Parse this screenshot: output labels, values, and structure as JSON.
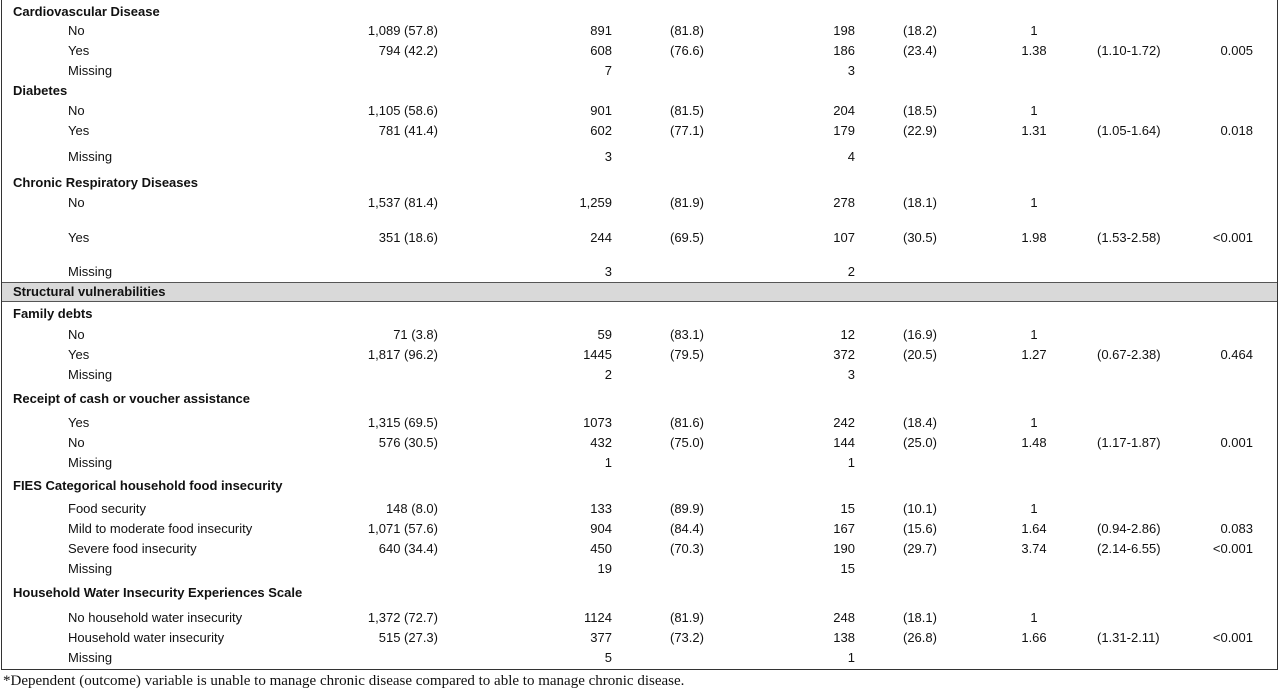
{
  "table": {
    "rows": [
      {
        "heading": "Cardiovascular Disease"
      },
      {
        "label": "No",
        "c1": "1,089 (57.8)",
        "c2": "891",
        "c3": "(81.8)",
        "c4": "198",
        "c5": "(18.2)",
        "c6": "1"
      },
      {
        "label": "Yes",
        "c1": "794 (42.2)",
        "c2": "608",
        "c3": "(76.6)",
        "c4": "186",
        "c5": "(23.4)",
        "c6": "1.38",
        "c7": "(1.10-1.72)",
        "c8": "0.005"
      },
      {
        "label": "Missing",
        "c2": "7",
        "c4": "3"
      },
      {
        "heading": "Diabetes"
      },
      {
        "label": "No",
        "c1": "1,105 (58.6)",
        "c2": "901",
        "c3": "(81.5)",
        "c4": "204",
        "c5": "(18.5)",
        "c6": "1"
      },
      {
        "label": "Yes",
        "c1": "781 (41.4)",
        "c2": "602",
        "c3": "(77.1)",
        "c4": "179",
        "c5": "(22.9)",
        "c6": "1.31",
        "c7": "(1.05-1.64)",
        "c8": "0.018"
      },
      {
        "label": "Missing",
        "c2": "3",
        "c4": "4"
      },
      {
        "heading": "Chronic Respiratory Diseases"
      },
      {
        "label": "No",
        "c1": "1,537 (81.4)",
        "c2": "1,259",
        "c3": "(81.9)",
        "c4": "278",
        "c5": "(18.1)",
        "c6": "1"
      },
      {
        "label": "Yes",
        "c1": "351 (18.6)",
        "c2": "244",
        "c3": "(69.5)",
        "c4": "107",
        "c5": "(30.5)",
        "c6": "1.98",
        "c7": "(1.53-2.58)",
        "c8": "<0.001"
      },
      {
        "label": "Missing",
        "c2": "3",
        "c4": "2"
      },
      {
        "heading": "Structural vulnerabilities"
      },
      {
        "heading": "Family debts"
      },
      {
        "label": "No",
        "c1": "71 (3.8)",
        "c2": "59",
        "c3": "(83.1)",
        "c4": "12",
        "c5": "(16.9)",
        "c6": "1"
      },
      {
        "label": "Yes",
        "c1": "1,817 (96.2)",
        "c2": "1445",
        "c3": "(79.5)",
        "c4": "372",
        "c5": "(20.5)",
        "c6": "1.27",
        "c7": "(0.67-2.38)",
        "c8": "0.464"
      },
      {
        "label": "Missing",
        "c2": "2",
        "c4": "3"
      },
      {
        "heading": "Receipt of cash or voucher assistance"
      },
      {
        "label": "Yes",
        "c1": "1,315 (69.5)",
        "c2": "1073",
        "c3": "(81.6)",
        "c4": "242",
        "c5": "(18.4)",
        "c6": "1"
      },
      {
        "label": "No",
        "c1": "576 (30.5)",
        "c2": "432",
        "c3": "(75.0)",
        "c4": "144",
        "c5": "(25.0)",
        "c6": "1.48",
        "c7": "(1.17-1.87)",
        "c8": "0.001"
      },
      {
        "label": "Missing",
        "c2": "1",
        "c4": "1"
      },
      {
        "heading": "FIES Categorical household food insecurity"
      },
      {
        "label": "Food security",
        "c1": "148 (8.0)",
        "c2": "133",
        "c3": "(89.9)",
        "c4": "15",
        "c5": "(10.1)",
        "c6": "1"
      },
      {
        "label": "Mild to moderate food insecurity",
        "c1": "1,071 (57.6)",
        "c2": "904",
        "c3": "(84.4)",
        "c4": "167",
        "c5": "(15.6)",
        "c6": "1.64",
        "c7": "(0.94-2.86)",
        "c8": "0.083"
      },
      {
        "label": "Severe food insecurity",
        "c1": "640 (34.4)",
        "c2": "450",
        "c3": "(70.3)",
        "c4": "190",
        "c5": "(29.7)",
        "c6": "3.74",
        "c7": "(2.14-6.55)",
        "c8": "<0.001"
      },
      {
        "label": "Missing",
        "c2": "19",
        "c4": "15"
      },
      {
        "heading": "Household Water Insecurity Experiences Scale"
      },
      {
        "label": "No household water insecurity",
        "c1": "1,372 (72.7)",
        "c2": "1124",
        "c3": "(81.9)",
        "c4": "248",
        "c5": "(18.1)",
        "c6": "1"
      },
      {
        "label": "Household water insecurity",
        "c1": "515 (27.3)",
        "c2": "377",
        "c3": "(73.2)",
        "c4": "138",
        "c5": "(26.8)",
        "c6": "1.66",
        "c7": "(1.31-2.11)",
        "c8": "<0.001"
      },
      {
        "label": "Missing",
        "c2": "5",
        "c4": "1"
      }
    ]
  },
  "footnote": "*Dependent (outcome) variable is unable to manage chronic disease compared to able to manage chronic disease."
}
